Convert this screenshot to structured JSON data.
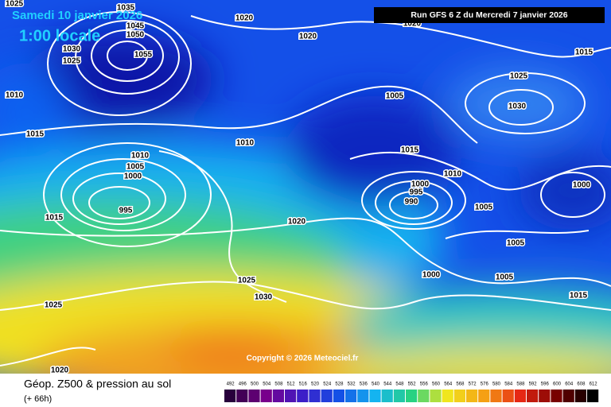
{
  "header": {
    "date": "Samedi 10 janvier 2026",
    "time": "1:00 locale",
    "run": "Run GFS 6 Z du Mercredi 7 janvier 2026",
    "copyright": "Copyright © 2026 Meteociel.fr"
  },
  "footer": {
    "title": "Géop. Z500 & pression au sol",
    "lead": "(+ 66h)"
  },
  "colorbar": [
    492,
    496,
    500,
    504,
    508,
    512,
    516,
    520,
    524,
    528,
    532,
    536,
    540,
    544,
    548,
    552,
    556,
    560,
    564,
    568,
    572,
    576,
    580,
    584,
    588,
    592,
    596,
    600,
    604,
    608,
    612
  ],
  "isobars": [
    1025,
    1035,
    1045,
    1050,
    1020,
    1020,
    1020,
    1015,
    1030,
    1055,
    1025,
    1025,
    1010,
    1005,
    1030,
    1015,
    1010,
    1015,
    1010,
    1005,
    1000,
    1010,
    1000,
    995,
    1000,
    990,
    1005,
    995,
    1015,
    1020,
    1005,
    1000,
    1005,
    1025,
    1030,
    1015,
    1025,
    1020
  ]
}
